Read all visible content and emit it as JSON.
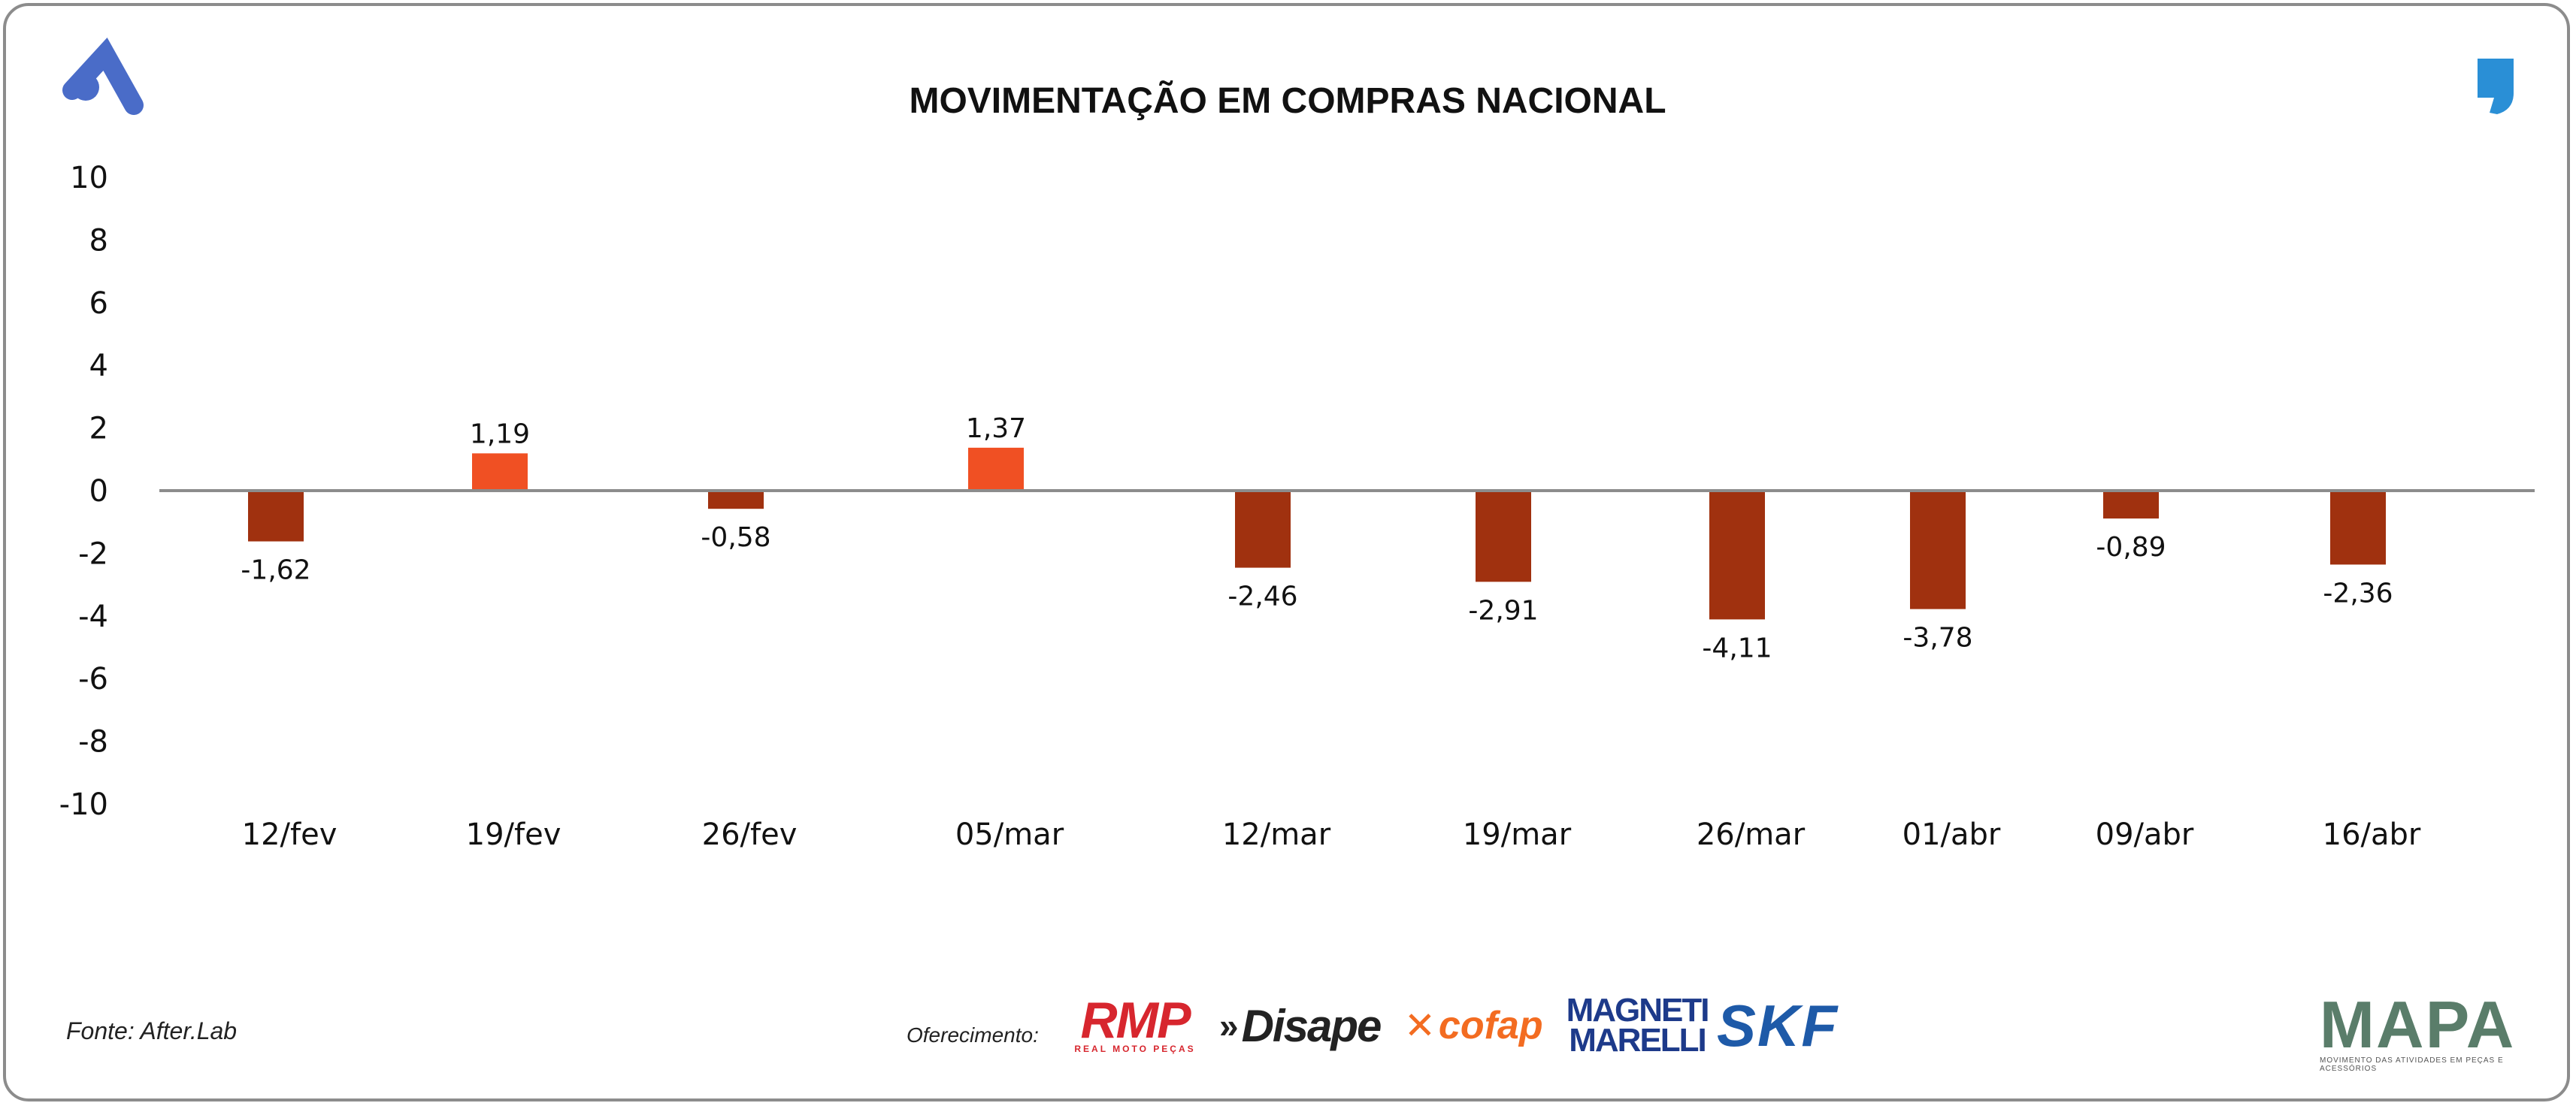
{
  "chart_data": {
    "type": "bar",
    "title": "MOVIMENTAÇÃO EM COMPRAS NACIONAL",
    "xlabel": "",
    "ylabel": "",
    "categories": [
      "12/fev",
      "19/fev",
      "26/fev",
      "05/mar",
      "12/mar",
      "19/mar",
      "26/mar",
      "01/abr",
      "09/abr",
      "16/abr"
    ],
    "values": [
      -1.62,
      1.19,
      -0.58,
      1.37,
      -2.46,
      -2.91,
      -4.11,
      -3.78,
      -0.89,
      -2.36
    ],
    "value_labels": [
      "-1,62",
      "1,19",
      "-0,58",
      "1,37",
      "-2,46",
      "-2,91",
      "-4,11",
      "-3,78",
      "-0,89",
      "-2,36"
    ],
    "ylim": [
      -10,
      10
    ],
    "yticks": [
      10,
      8,
      6,
      4,
      2,
      0,
      -2,
      -4,
      -6,
      -8,
      -10
    ],
    "grid": false,
    "colors": {
      "positive": "#f05023",
      "negative": "#a0310f",
      "baseline": "#8c8c8c"
    }
  },
  "source": "Fonte: After.Lab",
  "offer_label": "Oferecimento:",
  "sponsors": {
    "rmp": "RMP",
    "rmp_tagline": "REAL MOTO PEÇAS",
    "disape": "Disape",
    "cofap": "cofap",
    "magneti_line1": "MAGNETI",
    "magneti_line2": "MARELLI",
    "skf": "SKF",
    "mapa": "MAPA",
    "mapa_tagline": "MOVIMENTO DAS ATIVIDADES EM PEÇAS E ACESSÓRIOS"
  },
  "icons": {
    "top_left": "brand-a-icon",
    "top_right": "quote-mark-icon"
  },
  "brand_colors": {
    "a_logo": "#4a6cc8",
    "quote": "#2a8fd6"
  }
}
